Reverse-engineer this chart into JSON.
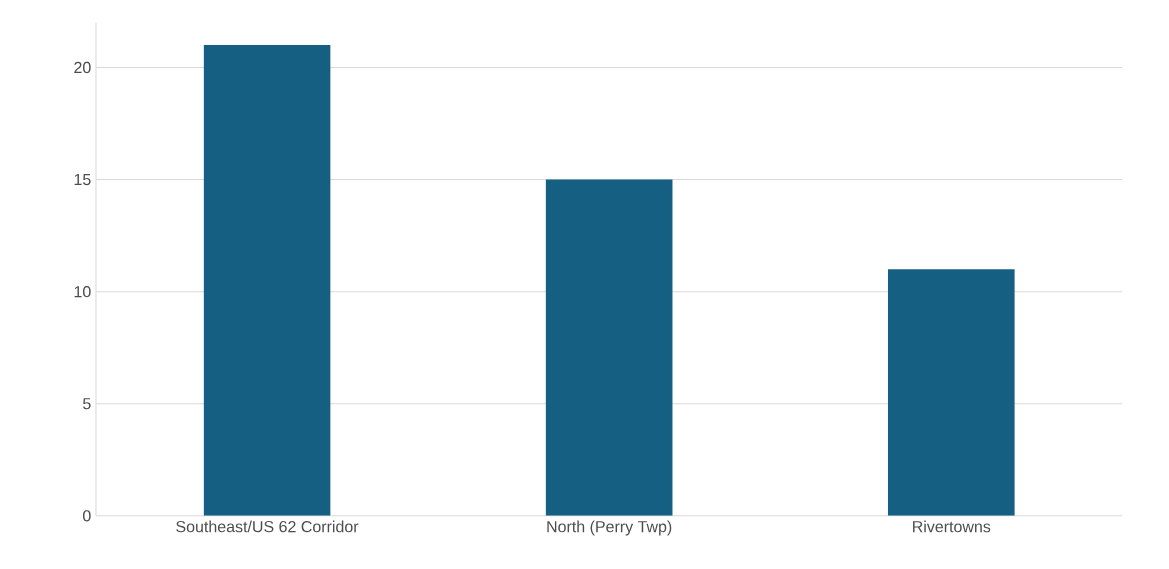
{
  "chart_data": {
    "type": "bar",
    "categories": [
      "Southeast/US 62 Corridor",
      "North (Perry Twp)",
      "Rivertowns"
    ],
    "values": [
      21,
      15,
      11
    ],
    "color": "#156082",
    "ylim": [
      0,
      22
    ],
    "yticks": [
      0,
      5,
      10,
      15,
      20
    ],
    "grid": "y"
  }
}
